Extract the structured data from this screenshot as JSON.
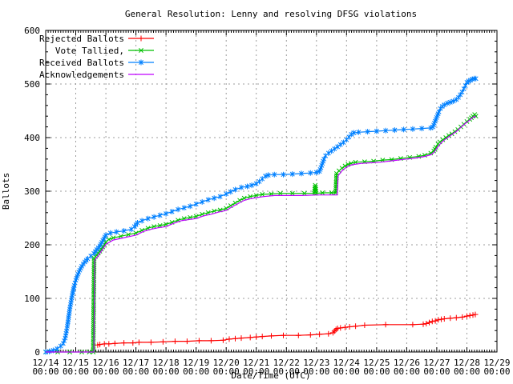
{
  "chart_data": {
    "type": "line",
    "title": "General Resolution: Lenny and resolving DFSG violations",
    "xlabel": "Date/Time (UTC)",
    "ylabel": "Ballots",
    "grid": true,
    "grid_color": "#9c9c9c",
    "legend_position": "top-left-inside",
    "ylim": [
      0,
      600
    ],
    "y_major_ticks": [
      0,
      100,
      200,
      300,
      400,
      500,
      600
    ],
    "y_minor_step": 20,
    "xlim_days": [
      0,
      15
    ],
    "x_minor_steps_per_day": 12,
    "x_tick_days": [
      "12/14",
      "12/15",
      "12/16",
      "12/17",
      "12/18",
      "12/19",
      "12/20",
      "12/21",
      "12/22",
      "12/23",
      "12/24",
      "12/25",
      "12/26",
      "12/27",
      "12/28",
      "12/29"
    ],
    "x_tick_sub": "00:00",
    "series": [
      {
        "name": "Rejected Ballots",
        "color": "#ff0000",
        "marker": "plus",
        "points": [
          [
            1.73,
            13
          ],
          [
            1.8,
            14
          ],
          [
            1.95,
            15
          ],
          [
            2.1,
            15
          ],
          [
            2.3,
            16
          ],
          [
            2.6,
            17
          ],
          [
            2.9,
            17
          ],
          [
            3.1,
            18
          ],
          [
            3.5,
            18
          ],
          [
            3.9,
            19
          ],
          [
            4.3,
            20
          ],
          [
            4.7,
            20
          ],
          [
            5.1,
            21
          ],
          [
            5.5,
            21
          ],
          [
            5.9,
            22
          ],
          [
            6.1,
            24
          ],
          [
            6.3,
            25
          ],
          [
            6.5,
            26
          ],
          [
            6.8,
            27
          ],
          [
            7.0,
            28
          ],
          [
            7.2,
            29
          ],
          [
            7.5,
            30
          ],
          [
            7.9,
            31
          ],
          [
            8.4,
            31
          ],
          [
            8.8,
            32
          ],
          [
            9.1,
            33
          ],
          [
            9.4,
            34
          ],
          [
            9.55,
            36
          ],
          [
            9.6,
            39
          ],
          [
            9.65,
            42
          ],
          [
            9.7,
            44
          ],
          [
            9.8,
            45
          ],
          [
            9.95,
            46
          ],
          [
            10.1,
            47
          ],
          [
            10.3,
            48
          ],
          [
            10.6,
            50
          ],
          [
            11.3,
            51
          ],
          [
            12.2,
            51
          ],
          [
            12.55,
            52
          ],
          [
            12.65,
            53
          ],
          [
            12.75,
            55
          ],
          [
            12.85,
            57
          ],
          [
            12.95,
            58
          ],
          [
            13.05,
            60
          ],
          [
            13.15,
            61
          ],
          [
            13.25,
            62
          ],
          [
            13.45,
            63
          ],
          [
            13.65,
            64
          ],
          [
            13.85,
            65
          ],
          [
            14.0,
            67
          ],
          [
            14.1,
            68
          ],
          [
            14.2,
            69
          ],
          [
            14.28,
            70
          ]
        ]
      },
      {
        "name": "Vote Tallied,",
        "color": "#00c000",
        "marker": "cross",
        "points": [
          [
            0,
            0
          ],
          [
            0.4,
            0
          ],
          [
            0.8,
            0
          ],
          [
            1.2,
            0
          ],
          [
            1.45,
            0
          ],
          [
            1.58,
            0
          ],
          [
            1.61,
            175
          ],
          [
            1.7,
            181
          ],
          [
            1.8,
            188
          ],
          [
            1.9,
            196
          ],
          [
            2.0,
            205
          ],
          [
            2.1,
            210
          ],
          [
            2.25,
            213
          ],
          [
            2.5,
            216
          ],
          [
            2.75,
            219
          ],
          [
            3.0,
            222
          ],
          [
            3.2,
            227
          ],
          [
            3.4,
            231
          ],
          [
            3.6,
            234
          ],
          [
            3.8,
            236
          ],
          [
            4.0,
            238
          ],
          [
            4.2,
            242
          ],
          [
            4.4,
            246
          ],
          [
            4.6,
            249
          ],
          [
            4.8,
            251
          ],
          [
            5.0,
            253
          ],
          [
            5.2,
            257
          ],
          [
            5.4,
            260
          ],
          [
            5.6,
            263
          ],
          [
            5.8,
            265
          ],
          [
            6.0,
            268
          ],
          [
            6.15,
            273
          ],
          [
            6.3,
            278
          ],
          [
            6.45,
            283
          ],
          [
            6.6,
            287
          ],
          [
            6.8,
            290
          ],
          [
            7.0,
            292
          ],
          [
            7.2,
            294
          ],
          [
            7.5,
            295
          ],
          [
            7.8,
            296
          ],
          [
            8.2,
            296
          ],
          [
            8.6,
            296
          ],
          [
            8.93,
            296
          ],
          [
            8.96,
            311
          ],
          [
            8.99,
            296
          ],
          [
            9.2,
            297
          ],
          [
            9.5,
            297
          ],
          [
            9.64,
            297
          ],
          [
            9.67,
            333
          ],
          [
            9.75,
            338
          ],
          [
            9.85,
            343
          ],
          [
            9.95,
            347
          ],
          [
            10.05,
            350
          ],
          [
            10.15,
            352
          ],
          [
            10.3,
            354
          ],
          [
            10.6,
            355
          ],
          [
            10.9,
            356
          ],
          [
            11.2,
            358
          ],
          [
            11.5,
            359
          ],
          [
            11.8,
            361
          ],
          [
            12.1,
            363
          ],
          [
            12.4,
            365
          ],
          [
            12.6,
            367
          ],
          [
            12.8,
            371
          ],
          [
            12.9,
            375
          ],
          [
            12.97,
            382
          ],
          [
            13.04,
            388
          ],
          [
            13.1,
            392
          ],
          [
            13.2,
            396
          ],
          [
            13.3,
            400
          ],
          [
            13.4,
            404
          ],
          [
            13.5,
            407
          ],
          [
            13.6,
            411
          ],
          [
            13.7,
            415
          ],
          [
            13.8,
            420
          ],
          [
            13.9,
            425
          ],
          [
            14.0,
            430
          ],
          [
            14.1,
            434
          ],
          [
            14.2,
            440
          ],
          [
            14.26,
            443
          ],
          [
            14.3,
            440
          ]
        ]
      },
      {
        "name": "Received Ballots",
        "color": "#0080ff",
        "marker": "asterisk",
        "points": [
          [
            0,
            0
          ],
          [
            0.12,
            1
          ],
          [
            0.25,
            3
          ],
          [
            0.38,
            6
          ],
          [
            0.5,
            11
          ],
          [
            0.58,
            16
          ],
          [
            0.65,
            26
          ],
          [
            0.72,
            48
          ],
          [
            0.8,
            80
          ],
          [
            0.88,
            105
          ],
          [
            0.95,
            124
          ],
          [
            1.0,
            134
          ],
          [
            1.1,
            149
          ],
          [
            1.2,
            160
          ],
          [
            1.3,
            168
          ],
          [
            1.4,
            174
          ],
          [
            1.5,
            179
          ],
          [
            1.6,
            184
          ],
          [
            1.7,
            191
          ],
          [
            1.8,
            198
          ],
          [
            1.9,
            208
          ],
          [
            2.0,
            218
          ],
          [
            2.15,
            222
          ],
          [
            2.35,
            224
          ],
          [
            2.6,
            226
          ],
          [
            2.85,
            229
          ],
          [
            2.95,
            234
          ],
          [
            3.05,
            241
          ],
          [
            3.2,
            245
          ],
          [
            3.4,
            249
          ],
          [
            3.6,
            252
          ],
          [
            3.8,
            255
          ],
          [
            4.0,
            258
          ],
          [
            4.2,
            262
          ],
          [
            4.4,
            266
          ],
          [
            4.6,
            269
          ],
          [
            4.8,
            272
          ],
          [
            5.0,
            276
          ],
          [
            5.2,
            280
          ],
          [
            5.4,
            284
          ],
          [
            5.6,
            287
          ],
          [
            5.8,
            290
          ],
          [
            6.0,
            295
          ],
          [
            6.15,
            299
          ],
          [
            6.3,
            303
          ],
          [
            6.5,
            307
          ],
          [
            6.7,
            309
          ],
          [
            6.85,
            311
          ],
          [
            7.0,
            314
          ],
          [
            7.1,
            318
          ],
          [
            7.2,
            323
          ],
          [
            7.3,
            328
          ],
          [
            7.4,
            330
          ],
          [
            7.6,
            331
          ],
          [
            7.9,
            331
          ],
          [
            8.2,
            332
          ],
          [
            8.5,
            333
          ],
          [
            8.8,
            334
          ],
          [
            9.0,
            335
          ],
          [
            9.1,
            337
          ],
          [
            9.15,
            344
          ],
          [
            9.2,
            352
          ],
          [
            9.25,
            360
          ],
          [
            9.3,
            366
          ],
          [
            9.4,
            371
          ],
          [
            9.5,
            375
          ],
          [
            9.6,
            379
          ],
          [
            9.7,
            383
          ],
          [
            9.8,
            387
          ],
          [
            9.9,
            391
          ],
          [
            10.0,
            396
          ],
          [
            10.08,
            401
          ],
          [
            10.16,
            406
          ],
          [
            10.24,
            409
          ],
          [
            10.4,
            410
          ],
          [
            10.7,
            411
          ],
          [
            11.0,
            412
          ],
          [
            11.3,
            413
          ],
          [
            11.6,
            414
          ],
          [
            11.9,
            415
          ],
          [
            12.2,
            416
          ],
          [
            12.5,
            417
          ],
          [
            12.8,
            418
          ],
          [
            12.87,
            420
          ],
          [
            12.92,
            427
          ],
          [
            12.97,
            434
          ],
          [
            13.02,
            441
          ],
          [
            13.07,
            448
          ],
          [
            13.12,
            454
          ],
          [
            13.18,
            458
          ],
          [
            13.25,
            461
          ],
          [
            13.35,
            464
          ],
          [
            13.45,
            466
          ],
          [
            13.55,
            468
          ],
          [
            13.65,
            471
          ],
          [
            13.72,
            475
          ],
          [
            13.78,
            480
          ],
          [
            13.84,
            485
          ],
          [
            13.9,
            491
          ],
          [
            13.95,
            497
          ],
          [
            14.0,
            503
          ],
          [
            14.06,
            505
          ],
          [
            14.12,
            507
          ],
          [
            14.18,
            509
          ],
          [
            14.24,
            510
          ],
          [
            14.3,
            510
          ]
        ]
      },
      {
        "name": "Acknowledgements",
        "color": "#c000ff",
        "marker": "none",
        "points": [
          [
            0,
            0
          ],
          [
            0.5,
            0
          ],
          [
            1.0,
            0
          ],
          [
            1.6,
            0
          ],
          [
            1.63,
            171
          ],
          [
            1.75,
            180
          ],
          [
            1.9,
            192
          ],
          [
            2.0,
            201
          ],
          [
            2.25,
            209
          ],
          [
            2.5,
            212
          ],
          [
            2.75,
            215
          ],
          [
            3.0,
            218
          ],
          [
            3.25,
            225
          ],
          [
            3.5,
            229
          ],
          [
            3.75,
            232
          ],
          [
            4.0,
            234
          ],
          [
            4.25,
            240
          ],
          [
            4.5,
            245
          ],
          [
            4.75,
            247
          ],
          [
            5.0,
            249
          ],
          [
            5.25,
            254
          ],
          [
            5.5,
            257
          ],
          [
            5.75,
            261
          ],
          [
            6.0,
            264
          ],
          [
            6.2,
            271
          ],
          [
            6.4,
            277
          ],
          [
            6.6,
            283
          ],
          [
            6.8,
            286
          ],
          [
            7.0,
            288
          ],
          [
            7.25,
            290
          ],
          [
            7.6,
            292
          ],
          [
            8.0,
            292
          ],
          [
            8.5,
            292
          ],
          [
            9.0,
            293
          ],
          [
            9.3,
            293
          ],
          [
            9.69,
            293
          ],
          [
            9.72,
            329
          ],
          [
            9.85,
            338
          ],
          [
            9.95,
            343
          ],
          [
            10.1,
            348
          ],
          [
            10.25,
            350
          ],
          [
            10.5,
            352
          ],
          [
            10.8,
            353
          ],
          [
            11.1,
            354
          ],
          [
            11.4,
            356
          ],
          [
            11.7,
            358
          ],
          [
            12.0,
            360
          ],
          [
            12.3,
            362
          ],
          [
            12.6,
            365
          ],
          [
            12.8,
            368
          ],
          [
            12.9,
            372
          ],
          [
            13.0,
            380
          ],
          [
            13.08,
            386
          ],
          [
            13.16,
            391
          ],
          [
            13.26,
            396
          ],
          [
            13.36,
            400
          ],
          [
            13.46,
            404
          ],
          [
            13.56,
            408
          ],
          [
            13.66,
            412
          ],
          [
            13.76,
            417
          ],
          [
            13.86,
            422
          ],
          [
            13.96,
            427
          ],
          [
            14.06,
            431
          ],
          [
            14.16,
            436
          ],
          [
            14.26,
            440
          ],
          [
            14.3,
            438
          ]
        ]
      }
    ]
  }
}
